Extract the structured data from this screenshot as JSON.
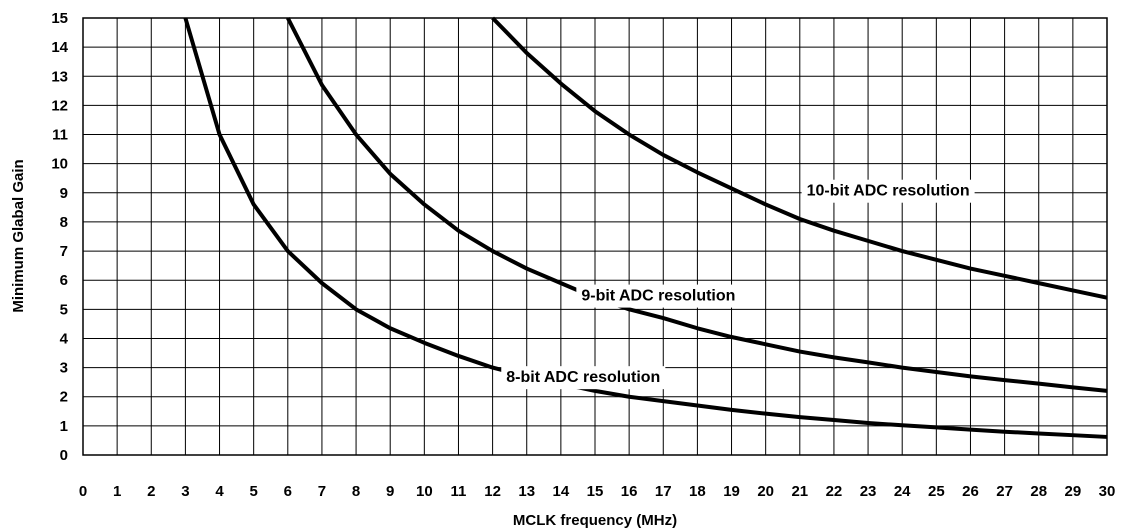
{
  "chart_data": {
    "type": "line",
    "title": "",
    "xlabel": "MCLK frequency (MHz)",
    "ylabel": "Minimum Glabal Gain",
    "xlim": [
      0,
      30
    ],
    "ylim": [
      0,
      15
    ],
    "x_ticks": [
      "0",
      "1",
      "2",
      "3",
      "4",
      "5",
      "6",
      "7",
      "8",
      "9",
      "10",
      "11",
      "12",
      "13",
      "14",
      "15",
      "16",
      "17",
      "18",
      "19",
      "20",
      "21",
      "22",
      "23",
      "24",
      "25",
      "26",
      "27",
      "28",
      "29",
      "30"
    ],
    "y_ticks": [
      "0",
      "1",
      "2",
      "3",
      "4",
      "5",
      "6",
      "7",
      "8",
      "9",
      "10",
      "11",
      "12",
      "13",
      "14",
      "15"
    ],
    "grid": true,
    "legend": "none",
    "line_color": "#000000",
    "series": [
      {
        "name": "8-bit ADC resolution",
        "x": [
          3,
          4,
          5,
          6,
          7,
          8,
          9,
          10,
          11,
          12,
          13,
          14,
          15,
          16,
          17,
          18,
          19,
          20,
          21,
          22,
          23,
          24,
          25,
          26,
          27,
          28,
          29,
          30
        ],
        "y": [
          15,
          11,
          8.6,
          7,
          5.9,
          5,
          4.35,
          3.85,
          3.4,
          3.0,
          2.7,
          2.45,
          2.2,
          2.0,
          1.85,
          1.7,
          1.55,
          1.42,
          1.3,
          1.2,
          1.1,
          1.02,
          0.95,
          0.87,
          0.8,
          0.74,
          0.68,
          0.62
        ]
      },
      {
        "name": "9-bit ADC resolution",
        "x": [
          6,
          7,
          8,
          9,
          10,
          11,
          12,
          13,
          14,
          15,
          16,
          17,
          18,
          19,
          20,
          21,
          22,
          23,
          24,
          25,
          26,
          27,
          28,
          29,
          30
        ],
        "y": [
          15,
          12.7,
          11,
          9.65,
          8.6,
          7.7,
          7,
          6.4,
          5.9,
          5.4,
          5.0,
          4.7,
          4.35,
          4.05,
          3.8,
          3.55,
          3.35,
          3.18,
          3.0,
          2.85,
          2.7,
          2.57,
          2.45,
          2.32,
          2.2
        ]
      },
      {
        "name": "10-bit ADC resolution",
        "x": [
          12,
          13,
          14,
          15,
          16,
          17,
          18,
          19,
          20,
          21,
          22,
          23,
          24,
          25,
          26,
          27,
          28,
          29,
          30
        ],
        "y": [
          15,
          13.8,
          12.75,
          11.8,
          11.0,
          10.3,
          9.7,
          9.15,
          8.6,
          8.1,
          7.7,
          7.35,
          7.0,
          6.7,
          6.4,
          6.15,
          5.9,
          5.65,
          5.4
        ]
      }
    ],
    "annotations": [
      "10-bit ADC resolution",
      "9-bit ADC resolution",
      "8-bit ADC resolution"
    ]
  }
}
